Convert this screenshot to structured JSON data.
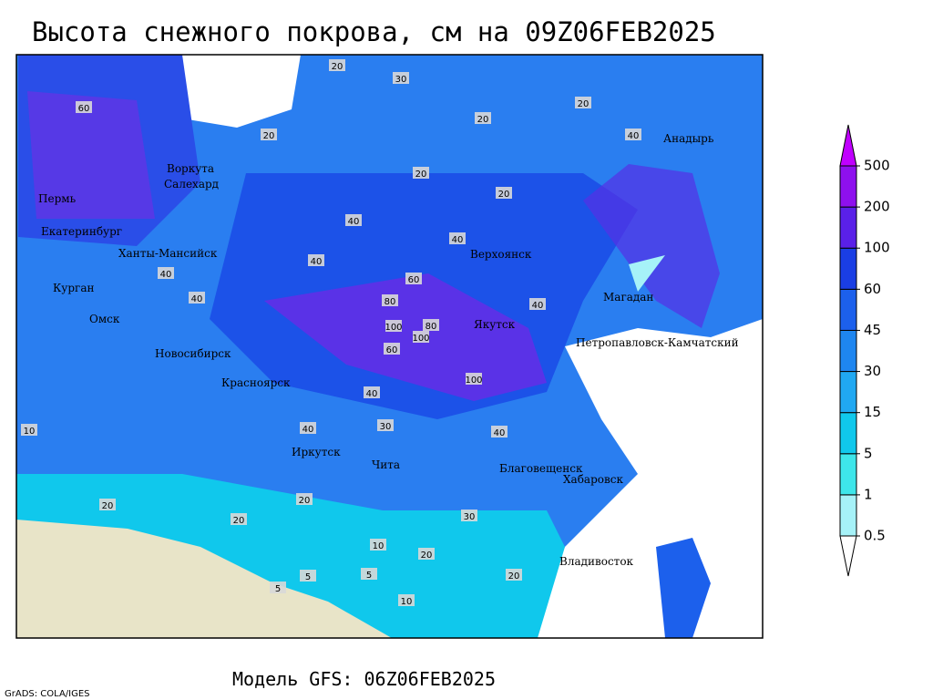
{
  "title": "Высота снежного покрова, см на 09Z06FEB2025",
  "footer": "Модель GFS: 06Z06FEB2025",
  "credit": "GrADS: COLA/IGES",
  "legend": {
    "levels": [
      0.5,
      1,
      5,
      15,
      30,
      45,
      60,
      100,
      200,
      500
    ],
    "colors": [
      "#ffffff",
      "#a6f2f8",
      "#3ee6ea",
      "#10c8ec",
      "#20a8f2",
      "#1e86f0",
      "#1c60ec",
      "#1a3ee4",
      "#5a20e8",
      "#8e10ee",
      "#c000ff"
    ]
  },
  "cities": [
    "Воркута",
    "Салехард",
    "Пермь",
    "Екатеринбург",
    "Ханты-Мансийск",
    "Курган",
    "Омск",
    "Новосибирск",
    "Красноярск",
    "Иркутск",
    "Чита",
    "Верхоянск",
    "Якутск",
    "Магадан",
    "Анадырь",
    "Петропавловск-Камчатский",
    "Благовещенск",
    "Хабаровск",
    "Владивосток"
  ],
  "contour_labels": [
    20,
    30,
    20,
    40,
    60,
    20,
    20,
    40,
    20,
    20,
    40,
    40,
    60,
    80,
    100,
    80,
    100,
    100,
    60,
    40,
    40,
    30,
    40,
    40,
    10,
    20,
    20,
    20,
    30,
    5,
    10,
    5,
    5,
    20,
    10,
    20,
    40,
    40
  ]
}
